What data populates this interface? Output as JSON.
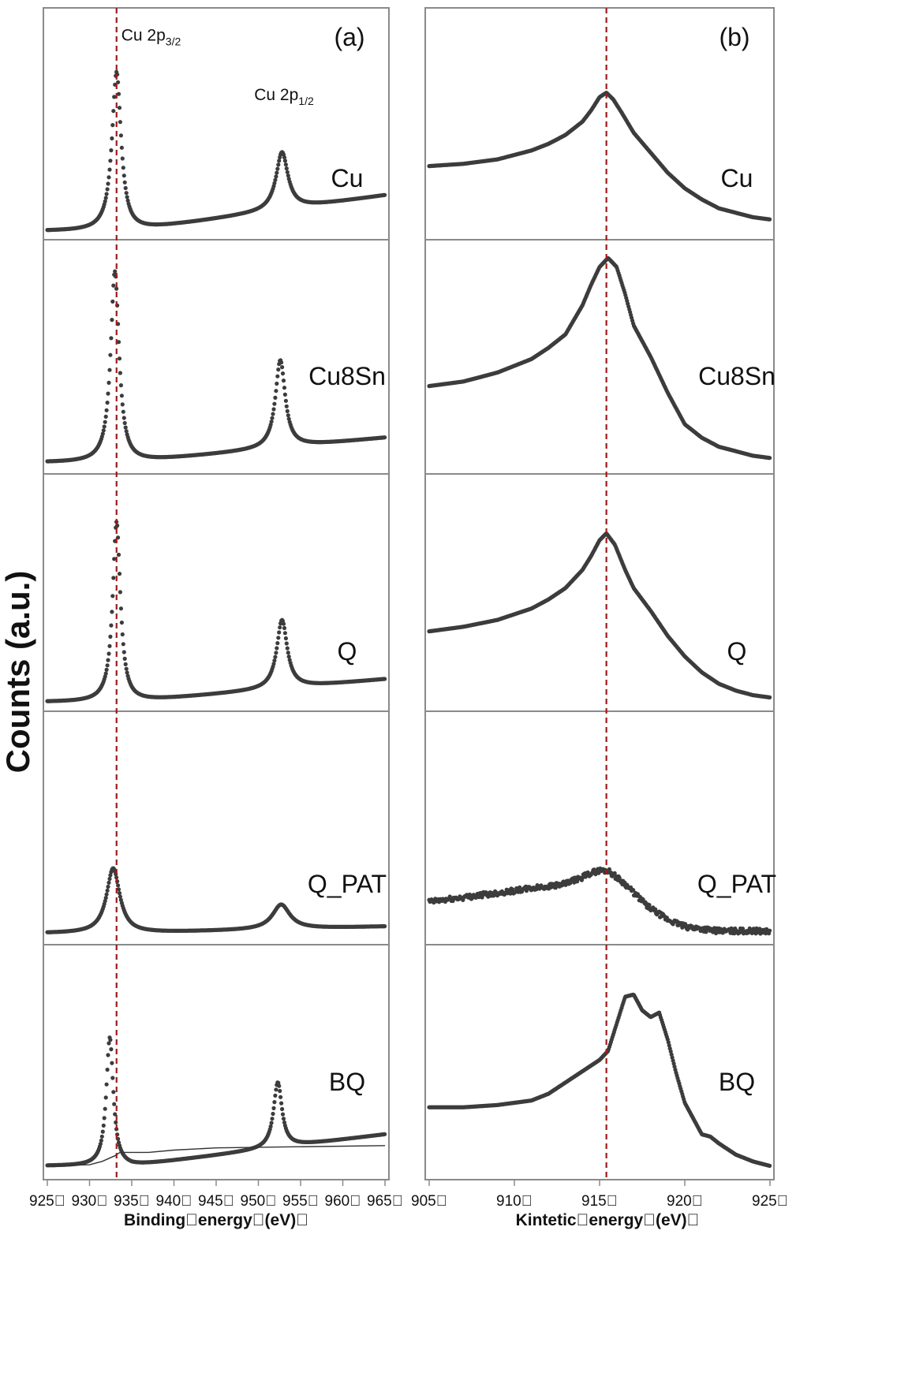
{
  "figure": {
    "ylabel": "Counts (a.u.)",
    "colors": {
      "frame": "#8a8a8a",
      "marker": "#3c3c3c",
      "reference_line": "#9b1c1c",
      "background_line": "#333333",
      "text": "#111111"
    }
  },
  "chart_data": [
    {
      "type": "scatter",
      "panel_label": "(a)",
      "xlabel": "Binding\u0000energy\u0000(eV)\u0000",
      "xlim": [
        925,
        965
      ],
      "x_ticks": [
        "925\u0000",
        "930\u0000",
        "935\u0000",
        "940\u0000",
        "945\u0000",
        "950\u0000",
        "955\u0000",
        "960\u0000",
        "965\u0000"
      ],
      "x_tick_values": [
        925,
        930,
        935,
        940,
        945,
        950,
        955,
        960,
        965
      ],
      "reference_line_x": 933.2,
      "annotations": [
        {
          "base": "Cu 2p",
          "sub": "3/2",
          "x": 933.2,
          "y": 0.98
        },
        {
          "base": "Cu 2p",
          "sub": "1/2",
          "x": 952.5,
          "y": 0.68
        }
      ],
      "series": [
        {
          "name": "Cu",
          "baseline": 0.02,
          "tail_rise": 0.18,
          "peaks": [
            {
              "x": 933.2,
              "h": 0.8,
              "w": 0.65
            },
            {
              "x": 952.8,
              "h": 0.29,
              "w": 0.85
            }
          ],
          "ylim": [
            0,
            1.12
          ]
        },
        {
          "name": "Cu8Sn",
          "baseline": 0.03,
          "tail_rise": 0.11,
          "peaks": [
            {
              "x": 933.0,
              "h": 0.85,
              "w": 0.6
            },
            {
              "x": 952.6,
              "h": 0.39,
              "w": 0.7
            }
          ],
          "ylim": [
            0,
            1.0
          ]
        },
        {
          "name": "Q",
          "baseline": 0.02,
          "tail_rise": 0.1,
          "peaks": [
            {
              "x": 933.2,
              "h": 0.79,
              "w": 0.55
            },
            {
              "x": 952.8,
              "h": 0.3,
              "w": 0.75
            }
          ],
          "ylim": [
            0,
            1.0
          ]
        },
        {
          "name": "Q_PAT",
          "baseline": 0.03,
          "tail_rise": 0.03,
          "peaks": [
            {
              "x": 932.8,
              "h": 0.29,
              "w": 0.95
            },
            {
              "x": 952.7,
              "h": 0.11,
              "w": 1.25
            }
          ],
          "ylim": [
            0,
            1.0
          ]
        },
        {
          "name": "BQ",
          "baseline": 0.04,
          "tail_rise": 0.14,
          "peaks": [
            {
              "x": 932.4,
              "h": 0.57,
              "w": 0.5
            },
            {
              "x": 952.3,
              "h": 0.29,
              "w": 0.6
            }
          ],
          "ylim": [
            0,
            1.0
          ],
          "background": {
            "x": [
              925,
              930,
              931.5,
              933,
              933.6,
              935,
              937,
              940,
              945,
              965
            ],
            "y": [
              0.04,
              0.045,
              0.06,
              0.085,
              0.1,
              0.1,
              0.1,
              0.11,
              0.12,
              0.13
            ]
          }
        }
      ]
    },
    {
      "type": "scatter",
      "panel_label": "(b)",
      "xlabel": "Kintetic\u0000energy\u0000(eV)\u0000",
      "xlim": [
        905,
        925
      ],
      "x_ticks": [
        "905\u0000",
        "910\u0000",
        "915\u0000",
        "920\u0000",
        "925\u0000"
      ],
      "x_tick_values": [
        905,
        910,
        915,
        920,
        925
      ],
      "reference_line_x": 915.4,
      "series": [
        {
          "name": "Cu",
          "ylim": [
            0,
            1.0
          ],
          "x": [
            905,
            907,
            909,
            911,
            912,
            913,
            914,
            914.5,
            915,
            915.4,
            915.8,
            916.3,
            917,
            918,
            919,
            920,
            921,
            922,
            923,
            924,
            925
          ],
          "y": [
            0.31,
            0.32,
            0.34,
            0.38,
            0.41,
            0.45,
            0.51,
            0.56,
            0.62,
            0.64,
            0.61,
            0.55,
            0.46,
            0.37,
            0.28,
            0.21,
            0.16,
            0.12,
            0.1,
            0.08,
            0.07
          ]
        },
        {
          "name": "Cu8Sn",
          "ylim": [
            0,
            1.0
          ],
          "x": [
            905,
            907,
            909,
            911,
            912,
            913,
            914,
            914.5,
            915,
            915.5,
            916,
            916.5,
            917,
            918,
            918.5,
            919,
            920,
            921,
            922,
            923,
            924,
            925
          ],
          "y": [
            0.37,
            0.39,
            0.43,
            0.49,
            0.54,
            0.6,
            0.73,
            0.82,
            0.9,
            0.94,
            0.9,
            0.78,
            0.64,
            0.5,
            0.42,
            0.34,
            0.2,
            0.14,
            0.1,
            0.08,
            0.06,
            0.05
          ]
        },
        {
          "name": "Q",
          "ylim": [
            0,
            1.0
          ],
          "x": [
            905,
            907,
            909,
            911,
            912,
            913,
            914,
            914.5,
            915,
            915.4,
            915.9,
            916.5,
            917,
            918,
            919,
            920,
            921,
            922,
            923,
            924,
            925
          ],
          "y": [
            0.33,
            0.35,
            0.38,
            0.43,
            0.47,
            0.52,
            0.6,
            0.66,
            0.73,
            0.76,
            0.71,
            0.6,
            0.52,
            0.42,
            0.31,
            0.22,
            0.15,
            0.1,
            0.07,
            0.05,
            0.04
          ]
        },
        {
          "name": "Q_PAT",
          "ylim": [
            0,
            1.0
          ],
          "noise": 0.012,
          "x": [
            905,
            907,
            909,
            911,
            912,
            913,
            914,
            914.5,
            915,
            915.5,
            916,
            916.5,
            917,
            918,
            919,
            920,
            921,
            922,
            923,
            925
          ],
          "y": [
            0.17,
            0.19,
            0.21,
            0.23,
            0.24,
            0.25,
            0.28,
            0.3,
            0.31,
            0.31,
            0.28,
            0.25,
            0.21,
            0.14,
            0.09,
            0.06,
            0.05,
            0.04,
            0.04,
            0.04
          ]
        },
        {
          "name": "BQ",
          "ylim": [
            0,
            1.0
          ],
          "x": [
            905,
            907,
            909,
            911,
            912,
            913,
            914,
            915,
            915.5,
            916,
            916.5,
            917,
            917.5,
            918,
            918.5,
            919,
            919.5,
            920,
            921,
            921.5,
            922,
            923,
            924,
            925
          ],
          "y": [
            0.3,
            0.3,
            0.31,
            0.33,
            0.36,
            0.41,
            0.46,
            0.51,
            0.55,
            0.67,
            0.79,
            0.8,
            0.73,
            0.7,
            0.72,
            0.6,
            0.45,
            0.32,
            0.18,
            0.17,
            0.14,
            0.09,
            0.06,
            0.04
          ]
        }
      ]
    }
  ]
}
